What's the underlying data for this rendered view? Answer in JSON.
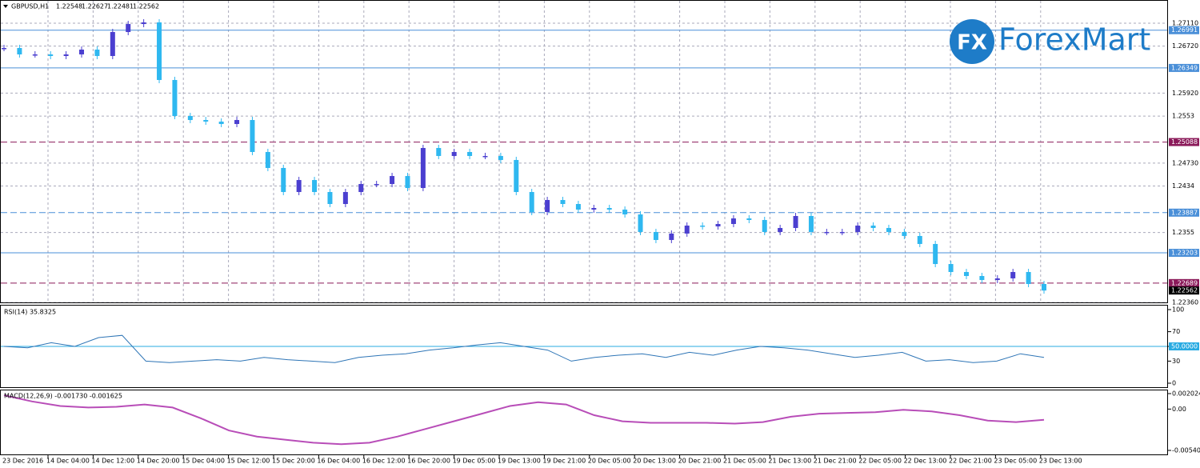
{
  "header": {
    "symbol": "GBPUSD,H1",
    "quotes": [
      "1.22548",
      "1.22627",
      "1.22481",
      "1.22562"
    ]
  },
  "logo": {
    "mark": "FX",
    "name": "ForexMart"
  },
  "price_panel": {
    "ylim": [
      1.2236,
      1.2711
    ],
    "yticks": [
      {
        "value": 1.2711,
        "label": "1.27110"
      },
      {
        "value": 1.2672,
        "label": "1.26720"
      },
      {
        "value": 1.2592,
        "label": "1.25920"
      },
      1.2553,
      {
        "value": 1.2473,
        "label": "1.24730"
      },
      1.2434,
      1.2355,
      {
        "value": 1.2236,
        "label": "1.22360"
      }
    ],
    "levels": [
      1.26991,
      1.26349,
      1.25088,
      1.23887,
      1.23203,
      1.22689,
      1.22562
    ],
    "closes": [
      1.26688,
      1.26579,
      1.26579,
      1.26552,
      1.26579,
      1.26661,
      1.26552,
      1.2696,
      1.27096,
      1.27124,
      1.26144,
      1.25531,
      1.25463,
      1.25436,
      1.25395,
      1.25463,
      1.24919,
      1.24647,
      1.24238,
      1.24442,
      1.24238,
      1.24034,
      1.24238,
      1.24374,
      1.24374,
      1.2451,
      1.24306,
      1.24987,
      1.24851,
      1.24919,
      1.24851,
      1.24851,
      1.24783,
      1.24238,
      1.23898,
      1.24102,
      1.24034,
      1.23939,
      1.23966,
      1.23939,
      1.23857,
      1.23558,
      1.23422,
      1.23531,
      1.23667,
      1.23653,
      1.23694,
      1.23789,
      1.23762,
      1.23558,
      1.23626,
      1.2383,
      1.23558,
      1.23558,
      1.23558,
      1.23667,
      1.23626,
      1.23558,
      1.2349,
      1.23354,
      1.23013,
      1.22877,
      1.22809,
      1.22741,
      1.22769,
      1.22877,
      1.22673,
      1.22562
    ]
  },
  "rsi_panel": {
    "title": "RSI(14) 35.8325",
    "ylim": [
      0,
      100
    ],
    "yticks": [
      100,
      70,
      {
        "value": 50,
        "label": "50.0000"
      },
      30,
      0
    ],
    "values": [
      50,
      48,
      55,
      50,
      62,
      65,
      30,
      28,
      30,
      32,
      30,
      35,
      32,
      30,
      28,
      35,
      38,
      40,
      45,
      48,
      52,
      55,
      50,
      45,
      30,
      35,
      38,
      40,
      35,
      42,
      38,
      45,
      50,
      48,
      45,
      40,
      35,
      38,
      42,
      30,
      32,
      28,
      30,
      40,
      35
    ]
  },
  "macd_panel": {
    "title": "MACD(12,26,9) -0.001730 -0.001625",
    "ylim": [
      -0.005407,
      0.002024
    ],
    "yticks": [
      0.002024,
      {
        "value": 0,
        "label": "0.00"
      },
      -0.005407
    ],
    "values": [
      0.0018,
      0.001,
      0.0004,
      0.0002,
      0.0003,
      0.0006,
      0.0002,
      -0.0012,
      -0.0028,
      -0.0036,
      -0.004,
      -0.0044,
      -0.0046,
      -0.0044,
      -0.0036,
      -0.0026,
      -0.0016,
      -0.0006,
      0.0004,
      0.0009,
      0.0006,
      -0.0008,
      -0.0016,
      -0.0018,
      -0.0018,
      -0.0018,
      -0.0019,
      -0.0017,
      -0.001,
      -0.0006,
      -0.0005,
      -0.0004,
      -0.0001,
      -0.0003,
      -0.0008,
      -0.0015,
      -0.0017,
      -0.0014
    ]
  },
  "time_axis": [
    "23 Dec 2016",
    "14 Dec 04:00",
    "14 Dec 12:00",
    "14 Dec 20:00",
    "15 Dec 04:00",
    "15 Dec 12:00",
    "15 Dec 20:00",
    "16 Dec 04:00",
    "16 Dec 12:00",
    "16 Dec 20:00",
    "19 Dec 05:00",
    "19 Dec 13:00",
    "19 Dec 21:00",
    "20 Dec 05:00",
    "20 Dec 13:00",
    "20 Dec 21:00",
    "21 Dec 05:00",
    "21 Dec 13:00",
    "21 Dec 21:00",
    "22 Dec 05:00",
    "22 Dec 13:00",
    "22 Dec 21:00",
    "23 Dec 05:00",
    "23 Dec 13:00"
  ]
}
